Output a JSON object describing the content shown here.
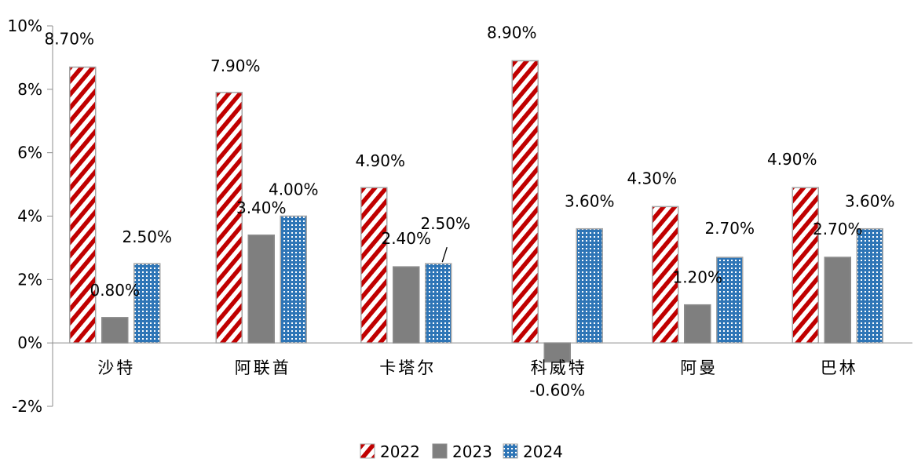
{
  "chart_data": {
    "type": "bar",
    "categories": [
      "沙特",
      "阿联酋",
      "卡塔尔",
      "科威特",
      "阿曼",
      "巴林"
    ],
    "series": [
      {
        "name": "2022",
        "values": [
          8.7,
          7.9,
          4.9,
          8.9,
          4.3,
          4.9
        ],
        "labels": [
          "8.70%",
          "7.90%",
          "4.90%",
          "8.90%",
          "4.30%",
          "4.90%"
        ],
        "pattern": "red-diagonal-stripes",
        "color": "#c00000"
      },
      {
        "name": "2023",
        "values": [
          0.8,
          3.4,
          2.4,
          -0.6,
          1.2,
          2.7
        ],
        "labels": [
          "0.80%",
          "3.40%",
          "2.40%",
          "-0.60%",
          "1.20%",
          "2.70%"
        ],
        "pattern": "solid-gray",
        "color": "#7f7f7f"
      },
      {
        "name": "2024",
        "values": [
          2.5,
          4.0,
          2.5,
          3.6,
          2.7,
          3.6
        ],
        "labels": [
          "2.50%",
          "4.00%",
          "2.50%",
          "3.60%",
          "2.70%",
          "3.60%"
        ],
        "pattern": "blue-dots",
        "color": "#2e75b6"
      }
    ],
    "ylim": [
      -2,
      10
    ],
    "yticks": [
      10,
      8,
      6,
      4,
      2,
      0,
      -2
    ],
    "ytick_labels": [
      "10%",
      "8%",
      "6%",
      "4%",
      "2%",
      "0%",
      "-2%"
    ],
    "grid": false,
    "legend_position": "bottom-center",
    "title": "",
    "xlabel": "",
    "ylabel": ""
  }
}
